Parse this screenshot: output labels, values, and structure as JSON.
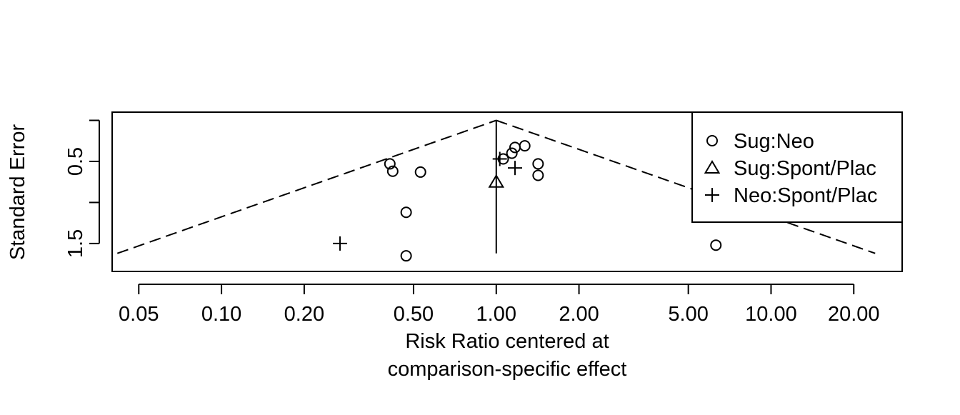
{
  "chart_data": {
    "type": "scatter",
    "subtype": "funnel-plot",
    "title": "",
    "xlabel_line1": "Risk Ratio centered at",
    "xlabel_line2": "comparison-specific effect",
    "ylabel": "Standard Error",
    "x_scale": "log",
    "y_reversed": true,
    "xlim": [
      0.04,
      30
    ],
    "ylim": [
      1.84,
      -0.1
    ],
    "x_ticks": [
      0.05,
      0.1,
      0.2,
      0.5,
      1.0,
      2.0,
      5.0,
      10.0,
      20.0
    ],
    "x_tick_labels": [
      "0.05",
      "0.10",
      "0.20",
      "0.50",
      "1.00",
      "2.00",
      "5.00",
      "10.00",
      "20.00"
    ],
    "y_ticks": [
      0,
      0.5,
      1,
      1.5
    ],
    "y_tick_labels": [
      "",
      "0.5",
      "",
      "1.5"
    ],
    "funnel": {
      "center": 1.0,
      "se_max": 1.62
    },
    "legend_position": "top-right",
    "legend": [
      {
        "label": "Sug:Neo",
        "symbol": "circle"
      },
      {
        "label": "Sug:Spont/Plac",
        "symbol": "triangle"
      },
      {
        "label": "Neo:Spont/Plac",
        "symbol": "plus"
      }
    ],
    "series": [
      {
        "name": "Sug:Neo",
        "symbol": "circle",
        "points": [
          {
            "x": 0.41,
            "y": 0.53
          },
          {
            "x": 0.42,
            "y": 0.62
          },
          {
            "x": 0.53,
            "y": 0.63
          },
          {
            "x": 1.06,
            "y": 0.47
          },
          {
            "x": 1.14,
            "y": 0.4
          },
          {
            "x": 1.17,
            "y": 0.33
          },
          {
            "x": 1.27,
            "y": 0.31
          },
          {
            "x": 1.42,
            "y": 0.53
          },
          {
            "x": 1.42,
            "y": 0.67
          },
          {
            "x": 0.47,
            "y": 1.12
          },
          {
            "x": 0.47,
            "y": 1.65
          },
          {
            "x": 6.3,
            "y": 1.52
          }
        ]
      },
      {
        "name": "Sug:Spont/Plac",
        "symbol": "triangle",
        "points": [
          {
            "x": 1.0,
            "y": 0.75
          }
        ]
      },
      {
        "name": "Neo:Spont/Plac",
        "symbol": "plus",
        "points": [
          {
            "x": 1.03,
            "y": 0.47
          },
          {
            "x": 1.17,
            "y": 0.58
          },
          {
            "x": 0.27,
            "y": 1.5
          }
        ]
      }
    ]
  }
}
